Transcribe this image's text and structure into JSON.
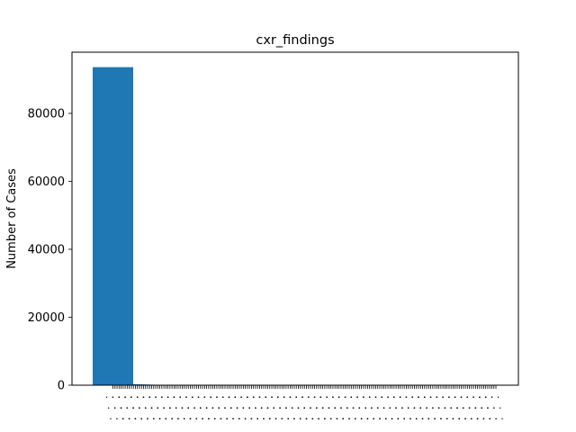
{
  "chart_data": {
    "type": "bar",
    "title": "cxr_findings",
    "xlabel": "",
    "ylabel": "Number of Cases",
    "ylim": [
      0,
      98000
    ],
    "yticks": [
      0,
      20000,
      40000,
      60000,
      80000
    ],
    "grid": false,
    "legend": "none",
    "bar_color": "#1f77b4",
    "category_count": 189,
    "category_label_placeholder": "· · ·",
    "values": [
      93600,
      310,
      250,
      220,
      200,
      190,
      180,
      170,
      160,
      150,
      145,
      140,
      135,
      130,
      125,
      120,
      115,
      110,
      105,
      100,
      98,
      95,
      92,
      90,
      88,
      85,
      82,
      80,
      78,
      76,
      74,
      72,
      70,
      68,
      66,
      64,
      62,
      60,
      58,
      56,
      55,
      54,
      53,
      52,
      51,
      50,
      49,
      48,
      47,
      46,
      45,
      44,
      43,
      42,
      41,
      40,
      39,
      38,
      37,
      36,
      35,
      34,
      33,
      32,
      31,
      30,
      30,
      29,
      29,
      28,
      28,
      27,
      27,
      26,
      26,
      25,
      25,
      24,
      24,
      23,
      23,
      22,
      22,
      21,
      21,
      20,
      20,
      19,
      19,
      18,
      18,
      17,
      17,
      16,
      16,
      15,
      15,
      14,
      14,
      13,
      13,
      12,
      12,
      12,
      11,
      11,
      11,
      10,
      10,
      10,
      9,
      9,
      9,
      9,
      8,
      8,
      8,
      8,
      7,
      7,
      7,
      7,
      6,
      6,
      6,
      6,
      6,
      5,
      5,
      5,
      5,
      5,
      5,
      4,
      4,
      4,
      4,
      4,
      4,
      4,
      3,
      3,
      3,
      3,
      3,
      3,
      3,
      3,
      3,
      2,
      2,
      2,
      2,
      2,
      2,
      2,
      2,
      2,
      2,
      2,
      2,
      1,
      1,
      1,
      1,
      1,
      1,
      1,
      1,
      1,
      1,
      1,
      1,
      1,
      1,
      1,
      1,
      1,
      1,
      1,
      1,
      1,
      1,
      1,
      1,
      1,
      1,
      1,
      1
    ]
  }
}
